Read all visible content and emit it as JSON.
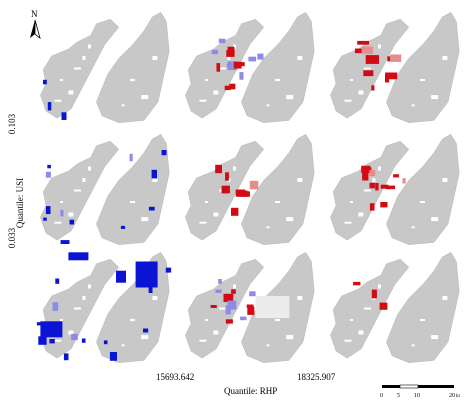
{
  "north_label": "N",
  "y_axis": {
    "title": "Quantile: USI",
    "tick_top": "0.103",
    "tick_bottom": "0.033"
  },
  "x_axis": {
    "title": "Quantile: RHP",
    "tick_left": "15693.642",
    "tick_right": "18325.907"
  },
  "scale_bar": {
    "ticks": [
      "0",
      "5",
      "10",
      "20"
    ],
    "unit": "km"
  },
  "colors": {
    "land": "#c8c8c8",
    "river_gaps": "#ffffff",
    "low": "#0a14d2",
    "low_light": "#8c8ce6",
    "high": "#d20a14",
    "high_light": "#e68c8c",
    "lake_light": "#ececec"
  },
  "map_grid": {
    "rows": 3,
    "cols": 3,
    "panels": [
      {
        "row": 0,
        "col": 0,
        "class": "low",
        "patches": 3
      },
      {
        "row": 0,
        "col": 1,
        "class": "mixed",
        "patches": 14
      },
      {
        "row": 0,
        "col": 2,
        "class": "high",
        "patches": 10
      },
      {
        "row": 1,
        "col": 0,
        "class": "low",
        "patches": 12
      },
      {
        "row": 1,
        "col": 1,
        "class": "high",
        "patches": 8
      },
      {
        "row": 1,
        "col": 2,
        "class": "high",
        "patches": 13
      },
      {
        "row": 2,
        "col": 0,
        "class": "low",
        "patches": 14
      },
      {
        "row": 2,
        "col": 1,
        "class": "mixed",
        "patches": 12
      },
      {
        "row": 2,
        "col": 2,
        "class": "high",
        "patches": 3
      }
    ]
  }
}
